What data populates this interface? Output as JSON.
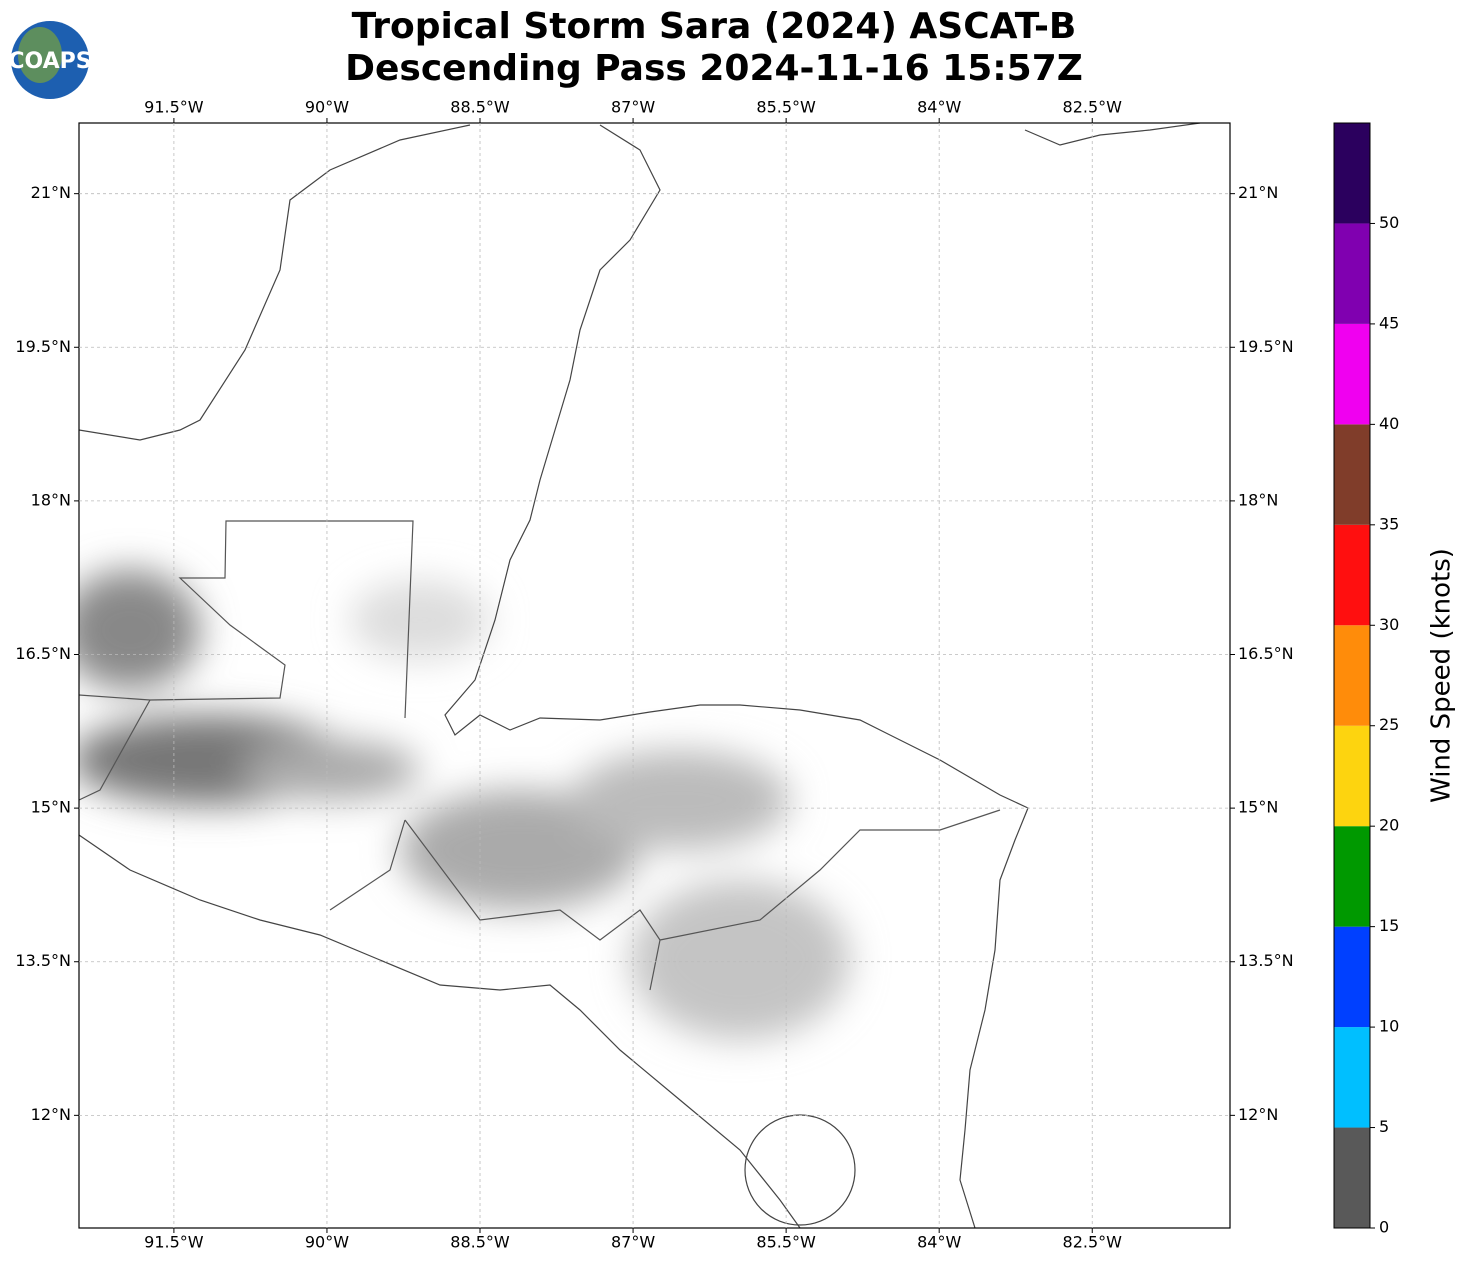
{
  "logo": "COAPS",
  "title_lines": [
    "Tropical Storm Sara (2024) ASCAT-B",
    "Descending Pass 2024-11-16 15:57Z"
  ],
  "map": {
    "xlim": [
      -92.43,
      -81.15
    ],
    "ylim": [
      10.9,
      21.69
    ],
    "grid": true,
    "xticks": [
      {
        "value": -91.5,
        "label": "91.5°W"
      },
      {
        "value": -90,
        "label": "90°W"
      },
      {
        "value": -88.5,
        "label": "88.5°W"
      },
      {
        "value": -87,
        "label": "87°W"
      },
      {
        "value": -85.5,
        "label": "85.5°W"
      },
      {
        "value": -84,
        "label": "84°W"
      },
      {
        "value": -82.5,
        "label": "82.5°W"
      }
    ],
    "yticks": [
      {
        "value": 21,
        "label": "21°N"
      },
      {
        "value": 19.5,
        "label": "19.5°N"
      },
      {
        "value": 18,
        "label": "18°N"
      },
      {
        "value": 16.5,
        "label": "16.5°N"
      },
      {
        "value": 15,
        "label": "15°N"
      },
      {
        "value": 13.5,
        "label": "13.5°N"
      },
      {
        "value": 12,
        "label": "12°N"
      }
    ]
  },
  "colorbar": {
    "label": "Wind Speed (knots)",
    "lim": [
      0,
      55
    ],
    "bounds": [
      0,
      5,
      10,
      15,
      20,
      25,
      30,
      35,
      40,
      45,
      50,
      55
    ],
    "colors": [
      "#595959",
      "#00bfff",
      "#0040ff",
      "#009900",
      "#fdd40f",
      "#ff8c0a",
      "#ff0f0f",
      "#803d2a",
      "#f000f0",
      "#8000b0",
      "#2b005e"
    ],
    "ticks": [
      0,
      5,
      10,
      15,
      20,
      25,
      30,
      35,
      40,
      45,
      50
    ]
  }
}
